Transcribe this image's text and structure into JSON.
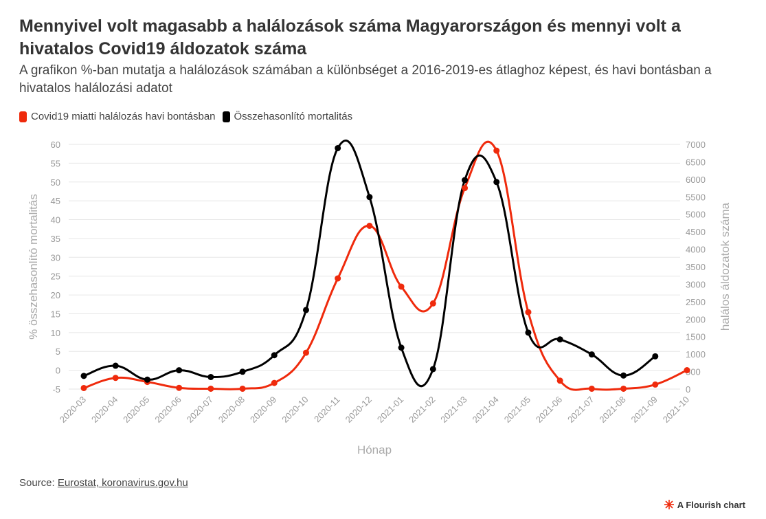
{
  "header": {
    "title": "Mennyivel volt magasabb a halálozások száma Magyarországon és mennyi volt a hivatalos Covid19 áldozatok száma",
    "subtitle": "A grafikon %-ban mutatja a halálozások számában a különbséget a 2016-2019-es átlaghoz képest, és havi bontásban a hivatalos halálozási adatot"
  },
  "legend": {
    "items": [
      {
        "label": "Covid19 miatti halálozás havi bontásban",
        "color": "#ef2a0c"
      },
      {
        "label": "Összehasonlító mortalitás",
        "color": "#000000"
      }
    ]
  },
  "footer": {
    "source_prefix": "Source: ",
    "source_link": "Eurostat, koronavirus.gov.hu",
    "credit": "A Flourish chart"
  },
  "chart_data": {
    "type": "line",
    "xlabel": "Hónap",
    "ylabel_left": "% összehasonlító mortalitás",
    "ylabel_right": "halálos áldozatok száma",
    "ylim_left": [
      -5,
      60
    ],
    "ylim_right": [
      0,
      7000
    ],
    "yticks_left": [
      -5,
      0,
      5,
      10,
      15,
      20,
      25,
      30,
      35,
      40,
      45,
      50,
      55,
      60
    ],
    "yticks_right": [
      0,
      500,
      1000,
      1500,
      2000,
      2500,
      3000,
      3500,
      4000,
      4500,
      5000,
      5500,
      6000,
      6500,
      7000
    ],
    "categories": [
      "2020-03",
      "2020-04",
      "2020-05",
      "2020-06",
      "2020-07",
      "2020-08",
      "2020-09",
      "2020-10",
      "2020-11",
      "2020-12",
      "2021-01",
      "2021-02",
      "2021-03",
      "2021-04",
      "2021-05",
      "2021-06",
      "2021-07",
      "2021-08",
      "2021-09",
      "2021-10"
    ],
    "grid": true,
    "legend_position": "top-left",
    "series": [
      {
        "name": "Covid19 miatti halálozás havi bontásban",
        "color": "#ef2a0c",
        "axis": "right",
        "values": [
          30,
          320,
          205,
          35,
          10,
          10,
          175,
          1040,
          3165,
          4670,
          2930,
          2450,
          5750,
          6820,
          2200,
          240,
          10,
          10,
          130,
          540
        ]
      },
      {
        "name": "Összehasonlító mortalitás",
        "color": "#000000",
        "axis": "left",
        "values": [
          -1.5,
          1.2,
          -2.5,
          0,
          -1.8,
          -0.4,
          4,
          16,
          59,
          46,
          6,
          0.3,
          50.5,
          50,
          10,
          8.2,
          4.2,
          -1.4,
          3.7,
          null
        ]
      }
    ]
  }
}
